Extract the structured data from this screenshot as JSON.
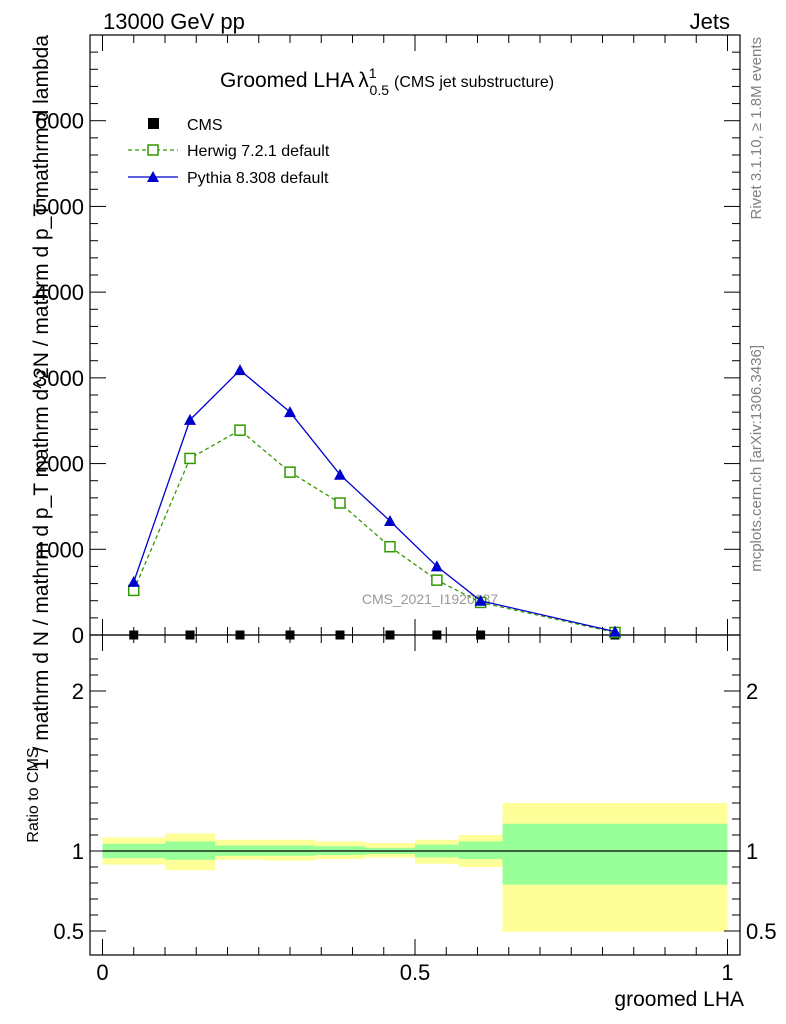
{
  "header": {
    "left": "13000 GeV pp",
    "right": "Jets"
  },
  "side": {
    "rivet": "Rivet 3.1.10, ≥ 1.8M events",
    "mcplots": "mcplots.cern.ch [arXiv:1306.3436]"
  },
  "watermark": "CMS_2021_I1920187",
  "colors": {
    "herwig": "#339900",
    "pythia": "#0000cc",
    "band_inner": "#99ff99",
    "band_outer": "#ffff99"
  },
  "chart_data": [
    {
      "type": "line",
      "title_main": "Groomed LHA",
      "title_symbol": "λ",
      "title_sup": "1",
      "title_sub": "0.5",
      "title_note": "(CMS jet substructure)",
      "ylabel": "1 / mathrm d N / mathrm d p_T mathrm d^2N / mathrm d p_T mathrm d lambda",
      "ylim": [
        0,
        7000
      ],
      "y_ticks": [
        0,
        1000,
        2000,
        3000,
        4000,
        5000,
        6000
      ],
      "y_tick_labels": [
        "0",
        "1000",
        "2000",
        "3000",
        "4000",
        "5000",
        "6000"
      ],
      "xlim": [
        -0.02,
        1.02
      ],
      "legend_position": "top-left",
      "series": [
        {
          "name": "CMS",
          "marker": "square-filled",
          "x": [
            0.05,
            0.14,
            0.22,
            0.3,
            0.38,
            0.46,
            0.535,
            0.605,
            0.82
          ],
          "y": [
            0,
            0,
            0,
            0,
            0,
            0,
            0,
            0,
            0
          ]
        },
        {
          "name": "Herwig 7.2.1 default",
          "marker": "square-open",
          "line": "dashed",
          "x": [
            0.05,
            0.14,
            0.22,
            0.3,
            0.38,
            0.46,
            0.535,
            0.605,
            0.82
          ],
          "y": [
            520,
            2060,
            2390,
            1900,
            1540,
            1030,
            640,
            380,
            30
          ]
        },
        {
          "name": "Pythia 8.308 default",
          "marker": "triangle-filled",
          "line": "solid",
          "x": [
            0.05,
            0.14,
            0.22,
            0.3,
            0.38,
            0.46,
            0.535,
            0.605,
            0.82
          ],
          "y": [
            620,
            2510,
            3090,
            2600,
            1870,
            1330,
            800,
            400,
            40
          ]
        }
      ]
    },
    {
      "type": "area",
      "ylabel": "Ratio to CMS",
      "xlabel": "groomed LHA",
      "ylim": [
        0.35,
        2.35
      ],
      "y_ticks": [
        0.5,
        1,
        2
      ],
      "y_tick_labels": [
        "0.5",
        "1",
        "2"
      ],
      "x_ticks": [
        0,
        0.5,
        1
      ],
      "x_tick_labels": [
        "0",
        "0.5",
        "1"
      ],
      "xlim": [
        -0.02,
        1.02
      ],
      "reference": 1,
      "bins": [
        {
          "lo": 0.0,
          "hi": 0.1,
          "inner": [
            0.955,
            1.045
          ],
          "outer": [
            0.915,
            1.085
          ]
        },
        {
          "lo": 0.1,
          "hi": 0.18,
          "inner": [
            0.945,
            1.06
          ],
          "outer": [
            0.88,
            1.11
          ]
        },
        {
          "lo": 0.18,
          "hi": 0.26,
          "inner": [
            0.97,
            1.035
          ],
          "outer": [
            0.945,
            1.07
          ]
        },
        {
          "lo": 0.26,
          "hi": 0.34,
          "inner": [
            0.97,
            1.035
          ],
          "outer": [
            0.94,
            1.07
          ]
        },
        {
          "lo": 0.34,
          "hi": 0.42,
          "inner": [
            0.975,
            1.03
          ],
          "outer": [
            0.95,
            1.06
          ]
        },
        {
          "lo": 0.42,
          "hi": 0.5,
          "inner": [
            0.98,
            1.02
          ],
          "outer": [
            0.96,
            1.05
          ]
        },
        {
          "lo": 0.5,
          "hi": 0.57,
          "inner": [
            0.96,
            1.04
          ],
          "outer": [
            0.92,
            1.07
          ]
        },
        {
          "lo": 0.57,
          "hi": 0.64,
          "inner": [
            0.95,
            1.06
          ],
          "outer": [
            0.9,
            1.1
          ]
        },
        {
          "lo": 0.64,
          "hi": 1.0,
          "inner": [
            0.79,
            1.17
          ],
          "outer": [
            0.495,
            1.3
          ]
        }
      ]
    }
  ]
}
